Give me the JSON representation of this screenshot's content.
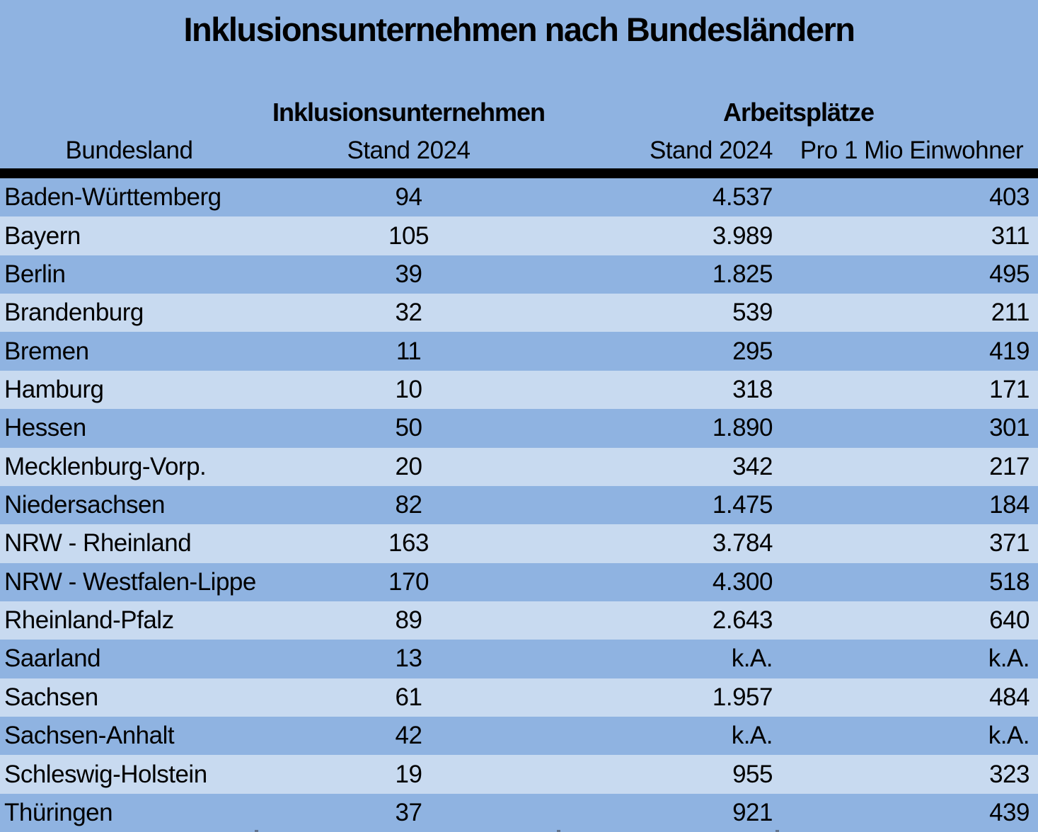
{
  "title": "Inklusionsunternehmen nach Bundesländern",
  "header": {
    "group_inklusionsunternehmen": "Inklusionsunternehmen",
    "group_arbeitsplaetze": "Arbeitsplätze",
    "bundesland": "Bundesland",
    "iu_stand": "Stand 2024",
    "ap_stand": "Stand 2024",
    "ap_pro_mio": "Pro 1 Mio Einwohner"
  },
  "colors": {
    "row_dark": "#8FB3E1",
    "row_light": "#C8DAF0",
    "divider": "#000000",
    "text": "#000000"
  },
  "chart_data": {
    "type": "table",
    "title": "Inklusionsunternehmen nach Bundesländern",
    "columns": [
      "Bundesland",
      "Inklusionsunternehmen Stand 2024",
      "Arbeitsplätze Stand 2024",
      "Arbeitsplätze Pro 1 Mio Einwohner"
    ],
    "rows": [
      [
        "Baden-Württemberg",
        "94",
        "4.537",
        "403"
      ],
      [
        "Bayern",
        "105",
        "3.989",
        "311"
      ],
      [
        "Berlin",
        "39",
        "1.825",
        "495"
      ],
      [
        "Brandenburg",
        "32",
        "539",
        "211"
      ],
      [
        "Bremen",
        "11",
        "295",
        "419"
      ],
      [
        "Hamburg",
        "10",
        "318",
        "171"
      ],
      [
        "Hessen",
        "50",
        "1.890",
        "301"
      ],
      [
        "Mecklenburg-Vorp.",
        "20",
        "342",
        "217"
      ],
      [
        "Niedersachsen",
        "82",
        "1.475",
        "184"
      ],
      [
        "NRW - Rheinland",
        "163",
        "3.784",
        "371"
      ],
      [
        "NRW - Westfalen-Lippe",
        "170",
        "4.300",
        "518"
      ],
      [
        "Rheinland-Pfalz",
        "89",
        "2.643",
        "640"
      ],
      [
        "Saarland",
        "13",
        "k.A.",
        "k.A."
      ],
      [
        "Sachsen",
        "61",
        "1.957",
        "484"
      ],
      [
        "Sachsen-Anhalt",
        "42",
        "k.A.",
        "k.A."
      ],
      [
        "Schleswig-Holstein",
        "19",
        "955",
        "323"
      ],
      [
        "Thüringen",
        "37",
        "921",
        "439"
      ]
    ]
  }
}
